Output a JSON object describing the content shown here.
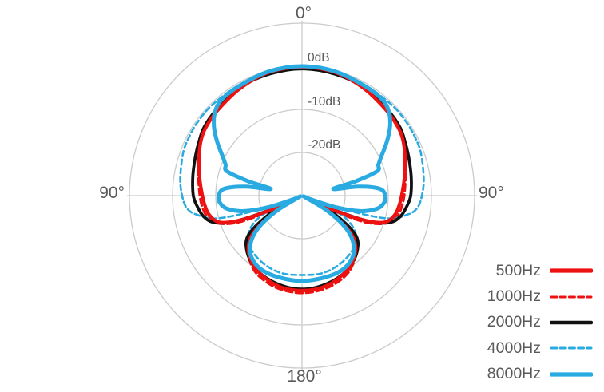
{
  "chart_data": {
    "type": "line",
    "subtype": "polar-pattern",
    "title": "",
    "description": "Microphone directional polar pattern vs frequency",
    "angle_labels": {
      "top": "0°",
      "left": "90°",
      "right": "90°",
      "bottom": "180°"
    },
    "radial_axis": {
      "unit": "dB",
      "tick_labels": [
        "0dB",
        "-10dB",
        "-20dB"
      ],
      "tick_db": [
        0,
        -10,
        -20
      ],
      "ring_db": [
        10,
        0,
        -10,
        -20
      ],
      "db_at_center": -30,
      "grid": true,
      "grid_color": "#cbcbcb",
      "label_color": "#595959"
    },
    "legend_position": "bottom-right",
    "draw_order": [
      "1000Hz",
      "4000Hz",
      "2000Hz",
      "500Hz",
      "8000Hz"
    ],
    "series": [
      {
        "name": "500Hz",
        "color": "#ee1111",
        "style": "solid",
        "line_width": 4.2,
        "symmetric_mirror": true,
        "points_deg_db": [
          [
            0,
            -0.2
          ],
          [
            15,
            -0.4
          ],
          [
            30,
            -1.3
          ],
          [
            45,
            -2.2
          ],
          [
            55,
            -2.7
          ],
          [
            62,
            -3.4
          ],
          [
            70,
            -4.6
          ],
          [
            80,
            -5.9
          ],
          [
            90,
            -6.9
          ],
          [
            96,
            -7.4
          ],
          [
            102,
            -8.1
          ],
          [
            108,
            -10
          ],
          [
            112,
            -15.2
          ],
          [
            116,
            -24.4
          ],
          [
            118,
            -28.5
          ],
          [
            121,
            -22.6
          ],
          [
            127,
            -16.1
          ],
          [
            135,
            -12.4
          ],
          [
            147,
            -10
          ],
          [
            160,
            -8.7
          ],
          [
            170,
            -8.1
          ],
          [
            180,
            -8
          ]
        ]
      },
      {
        "name": "1000Hz",
        "color": "#ee1111",
        "style": "dashed",
        "line_width": 3.0,
        "symmetric_mirror": true,
        "points_deg_db": [
          [
            0,
            -0.4
          ],
          [
            15,
            -0.6
          ],
          [
            30,
            -1.3
          ],
          [
            45,
            -2.2
          ],
          [
            55,
            -2.6
          ],
          [
            62,
            -3.3
          ],
          [
            70,
            -4.4
          ],
          [
            80,
            -5.6
          ],
          [
            90,
            -6.3
          ],
          [
            96,
            -6.7
          ],
          [
            102,
            -7.4
          ],
          [
            108,
            -9.3
          ],
          [
            113,
            -14.3
          ],
          [
            117,
            -23.5
          ],
          [
            119,
            -28.5
          ],
          [
            122,
            -21.7
          ],
          [
            128,
            -15.2
          ],
          [
            136,
            -11.9
          ],
          [
            148,
            -9.3
          ],
          [
            160,
            -8.1
          ],
          [
            170,
            -7.6
          ],
          [
            180,
            -7.4
          ]
        ]
      },
      {
        "name": "2000Hz",
        "color": "#111111",
        "style": "solid",
        "line_width": 3.8,
        "symmetric_mirror": true,
        "points_deg_db": [
          [
            0,
            -0.6
          ],
          [
            15,
            -0.8
          ],
          [
            30,
            -1.1
          ],
          [
            45,
            -1.9
          ],
          [
            55,
            -2.3
          ],
          [
            62,
            -3
          ],
          [
            70,
            -3.7
          ],
          [
            80,
            -4.3
          ],
          [
            90,
            -4.8
          ],
          [
            96,
            -5.6
          ],
          [
            102,
            -6.7
          ],
          [
            107,
            -8.7
          ],
          [
            111,
            -13.3
          ],
          [
            114,
            -21.7
          ],
          [
            116,
            -28.1
          ],
          [
            119,
            -21.7
          ],
          [
            126,
            -14.8
          ],
          [
            135,
            -11.9
          ],
          [
            147,
            -10
          ],
          [
            158,
            -9.1
          ],
          [
            170,
            -8.5
          ],
          [
            180,
            -8.3
          ]
        ]
      },
      {
        "name": "4000Hz",
        "color": "#29abe2",
        "style": "dashed",
        "line_width": 2.6,
        "symmetric_mirror": true,
        "points_deg_db": [
          [
            0,
            -0.4
          ],
          [
            15,
            -0.5
          ],
          [
            30,
            -0.5
          ],
          [
            45,
            -0.4
          ],
          [
            55,
            -0.4
          ],
          [
            62,
            -0.5
          ],
          [
            70,
            -0.7
          ],
          [
            82,
            -1.5
          ],
          [
            90,
            -2.2
          ],
          [
            96,
            -3.1
          ],
          [
            100,
            -5
          ],
          [
            105,
            -9.6
          ],
          [
            108,
            -18.9
          ],
          [
            112,
            -27.4
          ],
          [
            116,
            -19.8
          ],
          [
            124,
            -15.2
          ],
          [
            135,
            -13
          ],
          [
            150,
            -11.9
          ],
          [
            165,
            -11.4
          ],
          [
            180,
            -11.6
          ]
        ]
      },
      {
        "name": "8000Hz",
        "color": "#29abe2",
        "style": "solid",
        "line_width": 5.0,
        "symmetric_mirror": true,
        "points_deg_db": [
          [
            0,
            0
          ],
          [
            15,
            -0.2
          ],
          [
            30,
            -0.7
          ],
          [
            40,
            -1
          ],
          [
            46,
            -2
          ],
          [
            52,
            -4.1
          ],
          [
            58,
            -6.9
          ],
          [
            64,
            -9.6
          ],
          [
            68,
            -10.9
          ],
          [
            72,
            -11.7
          ],
          [
            75,
            -17
          ],
          [
            78,
            -22.6
          ],
          [
            81,
            -16.7
          ],
          [
            85,
            -11.9
          ],
          [
            90,
            -10.7
          ],
          [
            95,
            -10.9
          ],
          [
            100,
            -12.4
          ],
          [
            105,
            -16.1
          ],
          [
            109,
            -21.7
          ],
          [
            113,
            -27.8
          ],
          [
            116,
            -29.3
          ],
          [
            121,
            -23
          ],
          [
            127,
            -17
          ],
          [
            134,
            -13.3
          ],
          [
            142,
            -11.3
          ],
          [
            152,
            -10.4
          ],
          [
            164,
            -10.3
          ],
          [
            180,
            -10.2
          ]
        ]
      }
    ]
  }
}
